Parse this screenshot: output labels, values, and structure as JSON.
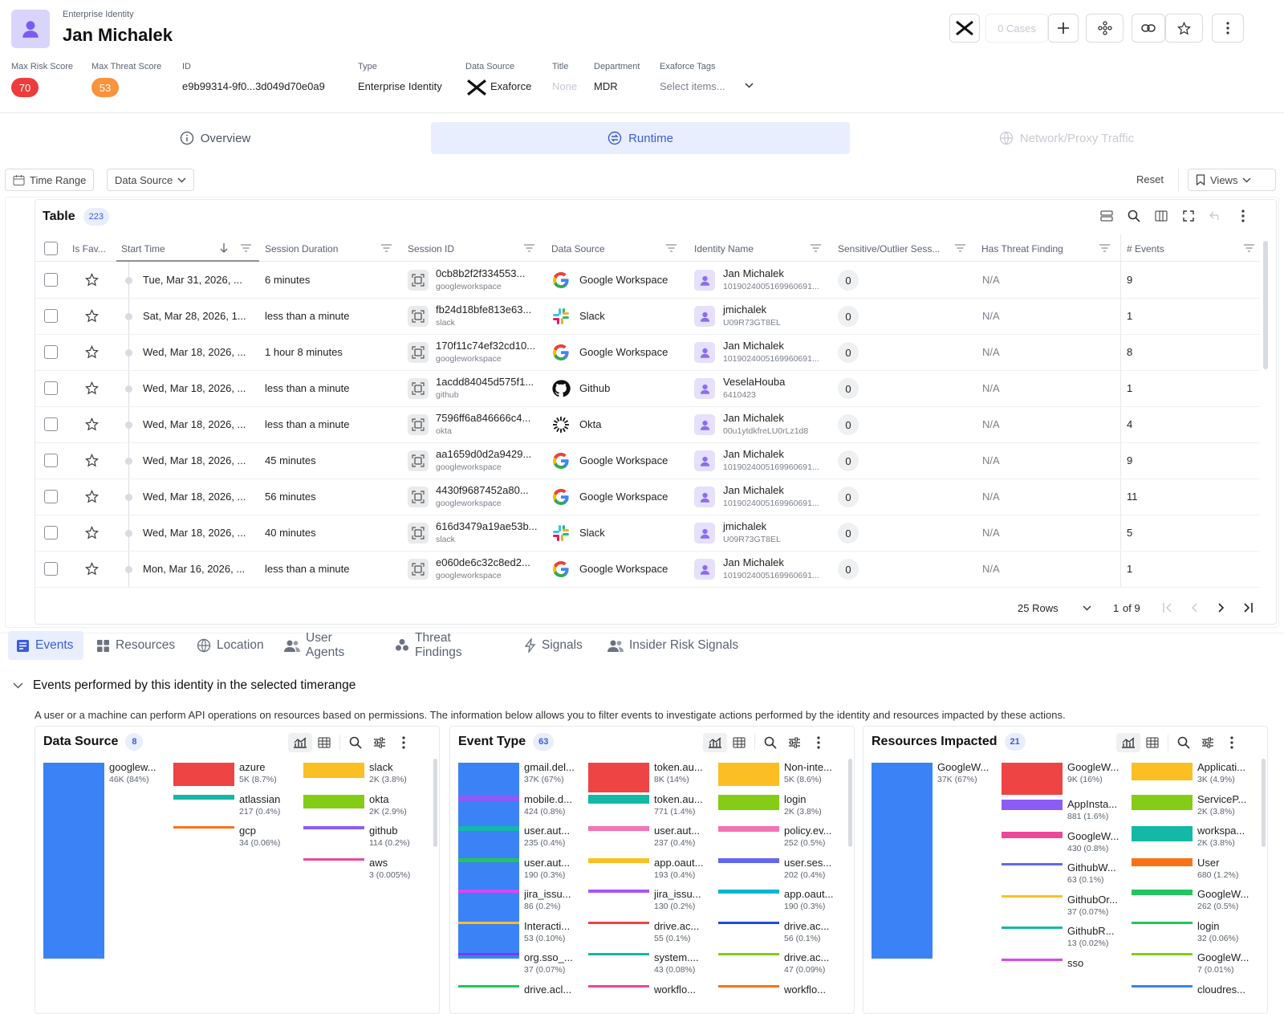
{
  "header": {
    "eyebrow": "Enterprise Identity",
    "name": "Jan Michalek",
    "cases_label": "0 Cases"
  },
  "meta": {
    "max_risk_label": "Max Risk Score",
    "max_risk_value": "70",
    "max_threat_label": "Max Threat Score",
    "max_threat_value": "53",
    "id_label": "ID",
    "id_value": "e9b99314-9f0...3d049d70e0a9",
    "type_label": "Type",
    "type_value": "Enterprise Identity",
    "ds_label": "Data Source",
    "ds_value": "Exaforce",
    "title_label": "Title",
    "title_value": "None",
    "dept_label": "Department",
    "dept_value": "MDR",
    "tags_label": "Exaforce Tags",
    "tags_placeholder": "Select items..."
  },
  "colors": {
    "risk": "#ee3b3b",
    "threat": "#fb923c",
    "accent": "#3b5bdb"
  },
  "main_tabs": [
    {
      "label": "Overview",
      "icon": "info-icon"
    },
    {
      "label": "Runtime",
      "icon": "runtime-icon"
    },
    {
      "label": "Network/Proxy Traffic",
      "icon": "globe-icon"
    }
  ],
  "filters": {
    "time_range": "Time Range",
    "data_source": "Data Source",
    "reset": "Reset",
    "views": "Views"
  },
  "table": {
    "title": "Table",
    "count": "223",
    "columns": [
      "Is Fav...",
      "Start Time",
      "Session Duration",
      "Session ID",
      "Data Source",
      "Identity Name",
      "Sensitive/Outlier Sess...",
      "Has Threat Finding",
      "# Events"
    ],
    "rows": [
      {
        "start": "Tue, Mar 31, 2026, ...",
        "duration": "6 minutes",
        "sid": "0cb8b2f2f334553...",
        "sid_src": "googleworkspace",
        "ds": "Google Workspace",
        "ds_icon": "google",
        "iname": "Jan Michalek",
        "iid": "1019024005169960691...",
        "sens": "0",
        "threat": "N/A",
        "events": "9"
      },
      {
        "start": "Sat, Mar 28, 2026, 1...",
        "duration": "less than a minute",
        "sid": "fb24d18bfe813e63...",
        "sid_src": "slack",
        "ds": "Slack",
        "ds_icon": "slack",
        "iname": "jmichalek",
        "iid": "U09R73GT8EL",
        "sens": "0",
        "threat": "N/A",
        "events": "1"
      },
      {
        "start": "Wed, Mar 18, 2026, ...",
        "duration": "1 hour 8 minutes",
        "sid": "170f11c74ef32cd10...",
        "sid_src": "googleworkspace",
        "ds": "Google Workspace",
        "ds_icon": "google",
        "iname": "Jan Michalek",
        "iid": "1019024005169960691...",
        "sens": "0",
        "threat": "N/A",
        "events": "8"
      },
      {
        "start": "Wed, Mar 18, 2026, ...",
        "duration": "less than a minute",
        "sid": "1acdd84045d575f1...",
        "sid_src": "github",
        "ds": "Github",
        "ds_icon": "github",
        "iname": "VeselaHouba",
        "iid": "6410423",
        "sens": "0",
        "threat": "N/A",
        "events": "1"
      },
      {
        "start": "Wed, Mar 18, 2026, ...",
        "duration": "less than a minute",
        "sid": "7596ff6a846666c4...",
        "sid_src": "okta",
        "ds": "Okta",
        "ds_icon": "okta",
        "iname": "Jan Michalek",
        "iid": "00u1ytdkfreLU0rLz1d8",
        "sens": "0",
        "threat": "N/A",
        "events": "4"
      },
      {
        "start": "Wed, Mar 18, 2026, ...",
        "duration": "45 minutes",
        "sid": "aa1659d0d2a9429...",
        "sid_src": "googleworkspace",
        "ds": "Google Workspace",
        "ds_icon": "google",
        "iname": "Jan Michalek",
        "iid": "1019024005169960691...",
        "sens": "0",
        "threat": "N/A",
        "events": "9"
      },
      {
        "start": "Wed, Mar 18, 2026, ...",
        "duration": "56 minutes",
        "sid": "4430f9687452a80...",
        "sid_src": "googleworkspace",
        "ds": "Google Workspace",
        "ds_icon": "google",
        "iname": "Jan Michalek",
        "iid": "1019024005169960691...",
        "sens": "0",
        "threat": "N/A",
        "events": "11"
      },
      {
        "start": "Wed, Mar 18, 2026, ...",
        "duration": "40 minutes",
        "sid": "616d3479a19ae53b...",
        "sid_src": "slack",
        "ds": "Slack",
        "ds_icon": "slack",
        "iname": "jmichalek",
        "iid": "U09R73GT8EL",
        "sens": "0",
        "threat": "N/A",
        "events": "5"
      },
      {
        "start": "Mon, Mar 16, 2026, ...",
        "duration": "less than a minute",
        "sid": "e060de6c32c8ed2...",
        "sid_src": "googleworkspace",
        "ds": "Google Workspace",
        "ds_icon": "google",
        "iname": "Jan Michalek",
        "iid": "1019024005169960691...",
        "sens": "0",
        "threat": "N/A",
        "events": "1"
      }
    ],
    "pagination": {
      "rows": "25 Rows",
      "page": "1",
      "of": "of 9"
    }
  },
  "bottom_tabs": [
    {
      "label": "Events",
      "icon": "events-icon"
    },
    {
      "label": "Resources",
      "icon": "grid-icon"
    },
    {
      "label": "Location",
      "icon": "globe-icon"
    },
    {
      "label": "User Agents",
      "icon": "users-icon"
    },
    {
      "label": "Threat Findings",
      "icon": "biohazard-icon"
    },
    {
      "label": "Signals",
      "icon": "bolt-icon"
    },
    {
      "label": "Insider Risk Signals",
      "icon": "users-icon"
    }
  ],
  "events_section": {
    "title": "Events performed by this identity in the selected timerange",
    "description": "A user or a machine can perform API operations on resources based on permissions. The information below allows you to filter events to investigate actions performed by the identity and resources impacted by these actions."
  },
  "widgets": [
    {
      "title": "Data Source",
      "count": "8",
      "tiles": [
        {
          "label": "googlew...",
          "value": "46K (84%)",
          "color": "#3b82f6",
          "share": 84,
          "col": 0,
          "row": 0
        },
        {
          "label": "azure",
          "value": "5K (8.7%)",
          "color": "#ef4444",
          "share": 8.7,
          "col": 1,
          "row": 0
        },
        {
          "label": "atlassian",
          "value": "217 (0.4%)",
          "color": "#14b8a6",
          "share": 0.4,
          "col": 1,
          "row": 1
        },
        {
          "label": "gcp",
          "value": "34 (0.06%)",
          "color": "#f97316",
          "share": 0.06,
          "col": 1,
          "row": 2
        },
        {
          "label": "slack",
          "value": "2K (3.8%)",
          "color": "#fbbf24",
          "share": 3.8,
          "col": 2,
          "row": 0
        },
        {
          "label": "okta",
          "value": "2K (2.9%)",
          "color": "#84cc16",
          "share": 2.9,
          "col": 2,
          "row": 1
        },
        {
          "label": "github",
          "value": "114 (0.2%)",
          "color": "#8b5cf6",
          "share": 0.2,
          "col": 2,
          "row": 2
        },
        {
          "label": "aws",
          "value": "3 (0.005%)",
          "color": "#ec4899",
          "share": 0.005,
          "col": 2,
          "row": 3
        }
      ]
    },
    {
      "title": "Event Type",
      "count": "63",
      "tiles": [
        {
          "label": "gmail.del...",
          "value": "37K (67%)",
          "color": "#3b82f6",
          "share": 67,
          "col": 0,
          "row": 0
        },
        {
          "label": "mobile.d...",
          "value": "424 (0.8%)",
          "color": "#8b5cf6",
          "share": 0.8,
          "col": 0,
          "row": 1
        },
        {
          "label": "user.aut...",
          "value": "235 (0.4%)",
          "color": "#14b8a6",
          "share": 0.4,
          "col": 0,
          "row": 2
        },
        {
          "label": "user.aut...",
          "value": "190 (0.3%)",
          "color": "#22c55e",
          "share": 0.3,
          "col": 0,
          "row": 3
        },
        {
          "label": "jira_issu...",
          "value": "86 (0.2%)",
          "color": "#d946ef",
          "share": 0.2,
          "col": 0,
          "row": 4
        },
        {
          "label": "Interacti...",
          "value": "53 (0.10%)",
          "color": "#fbbf24",
          "share": 0.1,
          "col": 0,
          "row": 5
        },
        {
          "label": "org.sso_...",
          "value": "37 (0.07%)",
          "color": "#7c3aed",
          "share": 0.07,
          "col": 0,
          "row": 6
        },
        {
          "label": "drive.acl...",
          "value": "",
          "color": "#22c55e",
          "share": 0.05,
          "col": 0,
          "row": 7
        },
        {
          "label": "token.au...",
          "value": "8K (14%)",
          "color": "#ef4444",
          "share": 14,
          "col": 1,
          "row": 0
        },
        {
          "label": "token.au...",
          "value": "771 (1.4%)",
          "color": "#14b8a6",
          "share": 1.4,
          "col": 1,
          "row": 1
        },
        {
          "label": "user.aut...",
          "value": "237 (0.4%)",
          "color": "#f472b6",
          "share": 0.4,
          "col": 1,
          "row": 2
        },
        {
          "label": "app.oaut...",
          "value": "193 (0.4%)",
          "color": "#fbbf24",
          "share": 0.4,
          "col": 1,
          "row": 3
        },
        {
          "label": "jira_issu...",
          "value": "130 (0.2%)",
          "color": "#a855f7",
          "share": 0.2,
          "col": 1,
          "row": 4
        },
        {
          "label": "drive.ac...",
          "value": "55 (0.1%)",
          "color": "#ef4444",
          "share": 0.1,
          "col": 1,
          "row": 5
        },
        {
          "label": "system....",
          "value": "43 (0.08%)",
          "color": "#14b8a6",
          "share": 0.08,
          "col": 1,
          "row": 6
        },
        {
          "label": "workflo...",
          "value": "",
          "color": "#ec4899",
          "share": 0.05,
          "col": 1,
          "row": 7
        },
        {
          "label": "Non-inte...",
          "value": "5K (8.6%)",
          "color": "#fbbf24",
          "share": 8.6,
          "col": 2,
          "row": 0
        },
        {
          "label": "login",
          "value": "2K (3.8%)",
          "color": "#84cc16",
          "share": 3.8,
          "col": 2,
          "row": 1
        },
        {
          "label": "policy.ev...",
          "value": "252 (0.5%)",
          "color": "#f472b6",
          "share": 0.5,
          "col": 2,
          "row": 2
        },
        {
          "label": "user.ses...",
          "value": "202 (0.4%)",
          "color": "#6366f1",
          "share": 0.4,
          "col": 2,
          "row": 3
        },
        {
          "label": "app.oaut...",
          "value": "190 (0.3%)",
          "color": "#06b6d4",
          "share": 0.3,
          "col": 2,
          "row": 4
        },
        {
          "label": "drive.ac...",
          "value": "56 (0.1%)",
          "color": "#1d4ed8",
          "share": 0.1,
          "col": 2,
          "row": 5
        },
        {
          "label": "drive.ac...",
          "value": "47 (0.09%)",
          "color": "#84cc16",
          "share": 0.09,
          "col": 2,
          "row": 6
        },
        {
          "label": "workflo...",
          "value": "",
          "color": "#f97316",
          "share": 0.05,
          "col": 2,
          "row": 7
        }
      ]
    },
    {
      "title": "Resources Impacted",
      "count": "21",
      "tiles": [
        {
          "label": "GoogleW...",
          "value": "37K (67%)",
          "color": "#3b82f6",
          "share": 67,
          "col": 0,
          "row": 0
        },
        {
          "label": "GoogleW...",
          "value": "9K (16%)",
          "color": "#ef4444",
          "share": 16,
          "col": 1,
          "row": 0
        },
        {
          "label": "AppInsta...",
          "value": "881 (1.6%)",
          "color": "#8b5cf6",
          "share": 1.6,
          "col": 1,
          "row": 1
        },
        {
          "label": "GoogleW...",
          "value": "430 (0.8%)",
          "color": "#ec4899",
          "share": 0.8,
          "col": 1,
          "row": 2
        },
        {
          "label": "GithubW...",
          "value": "63 (0.1%)",
          "color": "#6366f1",
          "share": 0.1,
          "col": 1,
          "row": 3
        },
        {
          "label": "GithubOr...",
          "value": "37 (0.07%)",
          "color": "#fbbf24",
          "share": 0.07,
          "col": 1,
          "row": 4
        },
        {
          "label": "GithubR...",
          "value": "13 (0.02%)",
          "color": "#14b8a6",
          "share": 0.02,
          "col": 1,
          "row": 5
        },
        {
          "label": "sso",
          "value": "",
          "color": "#d946ef",
          "share": 0.01,
          "col": 1,
          "row": 6
        },
        {
          "label": "Applicati...",
          "value": "3K (4.9%)",
          "color": "#fbbf24",
          "share": 4.9,
          "col": 2,
          "row": 0
        },
        {
          "label": "ServiceP...",
          "value": "2K (3.8%)",
          "color": "#84cc16",
          "share": 3.8,
          "col": 2,
          "row": 1
        },
        {
          "label": "workspa...",
          "value": "2K (3.8%)",
          "color": "#14b8a6",
          "share": 3.8,
          "col": 2,
          "row": 2
        },
        {
          "label": "User",
          "value": "680 (1.2%)",
          "color": "#f97316",
          "share": 1.2,
          "col": 2,
          "row": 3
        },
        {
          "label": "GoogleW...",
          "value": "262 (0.5%)",
          "color": "#22c55e",
          "share": 0.5,
          "col": 2,
          "row": 4
        },
        {
          "label": "login",
          "value": "32 (0.06%)",
          "color": "#22c55e",
          "share": 0.06,
          "col": 2,
          "row": 5
        },
        {
          "label": "GoogleW...",
          "value": "7 (0.01%)",
          "color": "#84cc16",
          "share": 0.01,
          "col": 2,
          "row": 6
        },
        {
          "label": "cloudres...",
          "value": "",
          "color": "#3b82f6",
          "share": 0.01,
          "col": 2,
          "row": 7
        }
      ]
    }
  ]
}
